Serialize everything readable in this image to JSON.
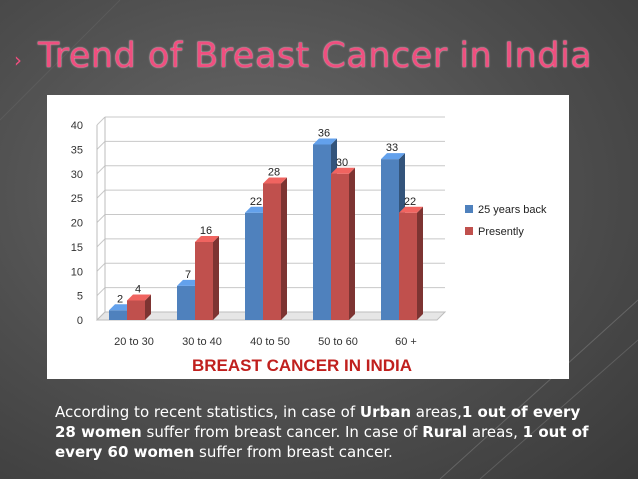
{
  "slide": {
    "title": "Trend of Breast Cancer in India",
    "title_color": "#ef4f7f",
    "bullet_icon": "chevron-right-icon"
  },
  "chart_data": {
    "type": "bar",
    "title": "BREAST CANCER IN INDIA",
    "categories": [
      "20 to 30",
      "30 to 40",
      "40 to 50",
      "50 to 60",
      "60 +"
    ],
    "series": [
      {
        "name": "25 years back",
        "values": [
          2,
          7,
          22,
          36,
          33
        ],
        "color": "#4f81bd"
      },
      {
        "name": "Presently",
        "values": [
          4,
          16,
          28,
          30,
          22
        ],
        "color": "#c0504d"
      }
    ],
    "ylim": [
      0,
      40
    ],
    "yticks": [
      0,
      5,
      10,
      15,
      20,
      25,
      30,
      35,
      40
    ],
    "grid": true,
    "legend_position": "right",
    "style": "3d-clustered-column"
  },
  "caption": {
    "segments": [
      {
        "text": "According to recent statistics, in case of ",
        "bold": false
      },
      {
        "text": "Urban",
        "bold": true
      },
      {
        "text": " areas,",
        "bold": false
      },
      {
        "text": "1 out of every 28 women",
        "bold": true
      },
      {
        "text": " suffer from breast cancer. In case of ",
        "bold": false
      },
      {
        "text": "Rural",
        "bold": true
      },
      {
        "text": " areas, ",
        "bold": false
      },
      {
        "text": "1 out of every 60 women",
        "bold": true
      },
      {
        "text": " suffer from breast cancer.",
        "bold": false
      }
    ]
  }
}
